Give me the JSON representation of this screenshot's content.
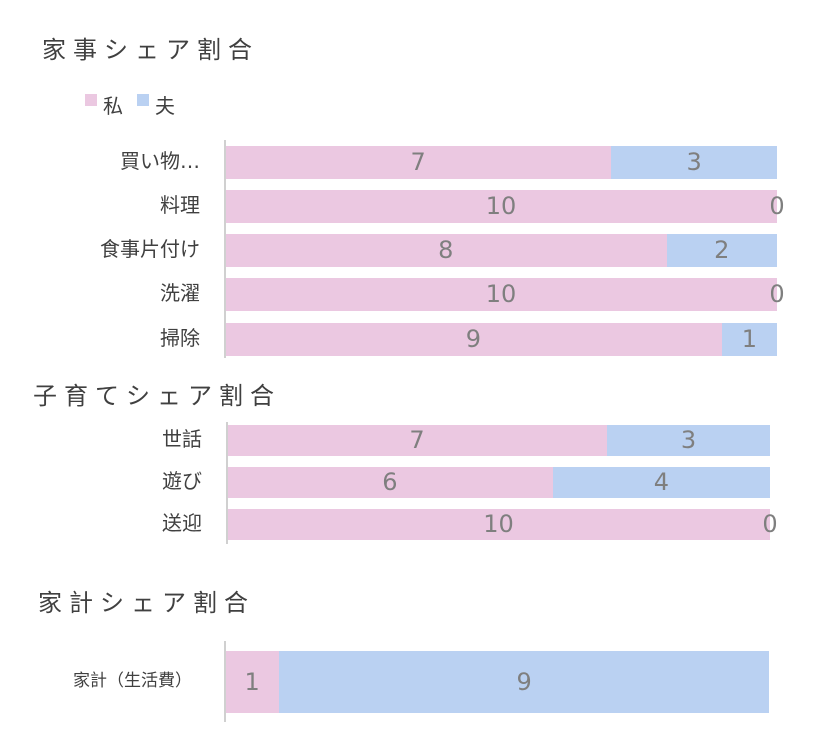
{
  "colors": {
    "me": "#EBC8E1",
    "husband": "#BAD1F2"
  },
  "legend": [
    {
      "label": "私",
      "color": "#EBC8E1"
    },
    {
      "label": "夫",
      "color": "#BAD1F2"
    }
  ],
  "chart_data": [
    {
      "type": "bar",
      "orientation": "horizontal",
      "stacked": true,
      "title": "家事シェア割合",
      "categories": [
        "買い物…",
        "料理",
        "食事片付け",
        "洗濯",
        "掃除"
      ],
      "series": [
        {
          "name": "私",
          "values": [
            7,
            10,
            8,
            10,
            9
          ]
        },
        {
          "name": "夫",
          "values": [
            3,
            0,
            2,
            0,
            1
          ]
        }
      ],
      "xlim": [
        0,
        10
      ],
      "grid": false,
      "legend": "top-left"
    },
    {
      "type": "bar",
      "orientation": "horizontal",
      "stacked": true,
      "title": "子育てシェア割合",
      "categories": [
        "世話",
        "遊び",
        "送迎"
      ],
      "series": [
        {
          "name": "私",
          "values": [
            7,
            6,
            10
          ]
        },
        {
          "name": "夫",
          "values": [
            3,
            4,
            0
          ]
        }
      ],
      "xlim": [
        0,
        10
      ],
      "grid": false
    },
    {
      "type": "bar",
      "orientation": "horizontal",
      "stacked": true,
      "title": "家計シェア割合",
      "categories": [
        "家計（生活費）"
      ],
      "series": [
        {
          "name": "私",
          "values": [
            1
          ]
        },
        {
          "name": "夫",
          "values": [
            9
          ]
        }
      ],
      "xlim": [
        0,
        10
      ],
      "grid": false
    }
  ]
}
